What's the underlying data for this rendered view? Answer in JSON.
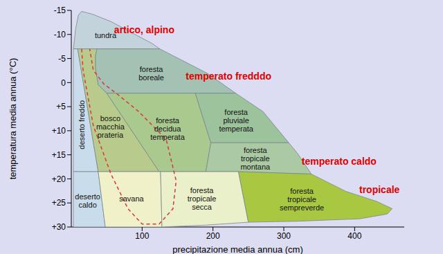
{
  "chart_data": {
    "type": "region",
    "x_label": "precipitazione media annua (cm)",
    "y_label": "temperatura media annua (°C)",
    "xlim": [
      0,
      470
    ],
    "xticks": [
      100,
      200,
      300,
      400
    ],
    "ylim": [
      30,
      -15
    ],
    "yticks": [
      -15,
      -10,
      -5,
      0,
      {
        "value": 5,
        "label": "+5"
      },
      {
        "value": 10,
        "label": "+10"
      },
      {
        "value": 15,
        "label": "+15"
      },
      {
        "value": 20,
        "label": "+20"
      },
      {
        "value": 25,
        "label": "+25"
      },
      {
        "value": 30,
        "label": "+30"
      }
    ],
    "regions": [
      {
        "name": "tundra",
        "color": "#c3d3dc",
        "points": [
          [
            3,
            -7
          ],
          [
            6,
            -11
          ],
          [
            10,
            -14
          ],
          [
            14.6,
            -14.8
          ],
          [
            30,
            -14.2
          ],
          [
            55.7,
            -12.7
          ],
          [
            114.3,
            -8.1
          ],
          [
            125,
            -7
          ]
        ]
      },
      {
        "name": "foresta boreale",
        "color": "#a3c2b4",
        "points": [
          [
            36,
            -7
          ],
          [
            125,
            -7
          ],
          [
            192.4,
            -1.9
          ],
          [
            232,
            2.2
          ],
          [
            50,
            2.2
          ],
          [
            38,
            0.5
          ],
          [
            34,
            -3
          ],
          [
            34,
            -5.5
          ]
        ]
      },
      {
        "name": "deserto freddo",
        "color": "#c9dcec",
        "points": [
          [
            3,
            -7
          ],
          [
            9,
            -7
          ],
          [
            38,
            18.5
          ],
          [
            3,
            18.5
          ]
        ]
      },
      {
        "name": "bosco macchia prateria",
        "color": "#b9cb8c",
        "points": [
          [
            9,
            -7
          ],
          [
            36,
            -7
          ],
          [
            34,
            -5.5
          ],
          [
            34,
            -3
          ],
          [
            38,
            0.5
          ],
          [
            50,
            2.2
          ],
          [
            124,
            18.5
          ],
          [
            38,
            18.5
          ]
        ]
      },
      {
        "name": "foresta decidua temperata",
        "color": "#a9c98f",
        "points": [
          [
            50,
            2.2
          ],
          [
            175,
            2.2
          ],
          [
            197,
            12.5
          ],
          [
            190,
            18.5
          ],
          [
            124,
            18.5
          ]
        ]
      },
      {
        "name": "foresta pluviale temperata",
        "color": "#9cc39c",
        "points": [
          [
            175,
            2.2
          ],
          [
            232,
            2.2
          ],
          [
            270.5,
            6
          ],
          [
            307,
            12.5
          ],
          [
            197,
            12.5
          ]
        ]
      },
      {
        "name": "foresta tropicale montana",
        "color": "#abc9a3",
        "points": [
          [
            197,
            12.5
          ],
          [
            307,
            12.5
          ],
          [
            319.3,
            14.7
          ],
          [
            338.9,
            19
          ],
          [
            236,
            18.5
          ],
          [
            190,
            18.5
          ]
        ]
      },
      {
        "name": "deserto caldo",
        "color": "#c9dcec",
        "points": [
          [
            3,
            18.5
          ],
          [
            38,
            18.5
          ],
          [
            48,
            30
          ],
          [
            3,
            30
          ]
        ]
      },
      {
        "name": "savana",
        "color": "#f1f1c9",
        "points": [
          [
            38,
            18.5
          ],
          [
            126,
            18.5
          ],
          [
            128,
            30
          ],
          [
            48,
            30
          ]
        ]
      },
      {
        "name": "foresta tropicale secca",
        "color": "#eaf0c9",
        "points": [
          [
            126,
            18.5
          ],
          [
            236,
            18.5
          ],
          [
            250,
            29
          ],
          [
            190,
            29.6
          ],
          [
            128,
            30
          ]
        ]
      },
      {
        "name": "foresta tropicale sempreverde",
        "color": "#a9c842",
        "points": [
          [
            236,
            18.5
          ],
          [
            338.9,
            19
          ],
          [
            387.7,
            22.6
          ],
          [
            431.6,
            24.7
          ],
          [
            453,
            26.2
          ],
          [
            446,
            27.3
          ],
          [
            407,
            28.3
          ],
          [
            320,
            28.8
          ],
          [
            250,
            29
          ]
        ]
      }
    ],
    "curves": [
      {
        "color": "#d9363e",
        "line_style": "dashed",
        "points": [
          [
            14.6,
            -7
          ],
          [
            16.6,
            -2.6
          ],
          [
            31,
            8.9
          ],
          [
            56,
            19
          ],
          [
            80,
            26.2
          ],
          [
            100,
            29.4
          ],
          [
            124,
            29.4
          ],
          [
            143.5,
            26.2
          ],
          [
            148,
            20.4
          ],
          [
            134,
            11.8
          ],
          [
            95,
            6
          ],
          [
            65,
            2.4
          ],
          [
            46,
            0.3
          ],
          [
            31,
            -2.6
          ],
          [
            26,
            -7
          ]
        ]
      }
    ],
    "annotations": [
      {
        "text": "artico, alpino",
        "x": 103,
        "y": -11,
        "color": "#e00000"
      },
      {
        "text": "temperato fredddo",
        "x": 222,
        "y": -1.4,
        "color": "#e00000"
      },
      {
        "text": "temperato caldo",
        "x": 378,
        "y": 16.4,
        "color": "#e00000"
      },
      {
        "text": "tropicale",
        "x": 435,
        "y": 22.2,
        "color": "#e00000"
      }
    ]
  }
}
